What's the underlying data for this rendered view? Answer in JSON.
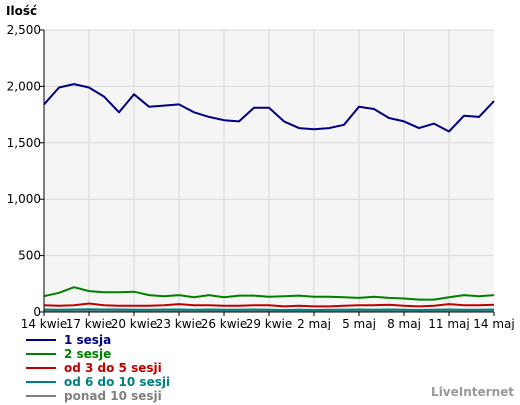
{
  "brand": "LiveInternet",
  "chart_data": {
    "type": "line",
    "ylabel": "Ilość",
    "ylim": [
      0,
      2500
    ],
    "yticks": [
      "0",
      "500",
      "1,000",
      "1,500",
      "2,000",
      "2,500"
    ],
    "ytick_values": [
      0,
      500,
      1000,
      1500,
      2000,
      2500
    ],
    "xticks": [
      "14 kwie",
      "17 kwie",
      "20 kwie",
      "23 kwie",
      "26 kwie",
      "29 kwie",
      "2 maj",
      "5 maj",
      "8 maj",
      "11 maj",
      "14 maj"
    ],
    "x": [
      "14 kwie",
      "15 kwie",
      "16 kwie",
      "17 kwie",
      "18 kwie",
      "19 kwie",
      "20 kwie",
      "21 kwie",
      "22 kwie",
      "23 kwie",
      "24 kwie",
      "25 kwie",
      "26 kwie",
      "27 kwie",
      "28 kwie",
      "29 kwie",
      "30 kwie",
      "1 maj",
      "2 maj",
      "3 maj",
      "4 maj",
      "5 maj",
      "6 maj",
      "7 maj",
      "8 maj",
      "9 maj",
      "10 maj",
      "11 maj",
      "12 maj",
      "13 maj",
      "14 maj"
    ],
    "grid": true,
    "background": "#f5f5f5",
    "series": [
      {
        "name": "1 sesja",
        "color": "#000080",
        "values": [
          1840,
          1990,
          2020,
          1990,
          1910,
          1770,
          1930,
          1820,
          1830,
          1840,
          1770,
          1730,
          1700,
          1690,
          1810,
          1810,
          1690,
          1630,
          1620,
          1630,
          1660,
          1820,
          1800,
          1720,
          1690,
          1630,
          1670,
          1600,
          1740,
          1730,
          1870
        ]
      },
      {
        "name": "2 sesje",
        "color": "#008000",
        "values": [
          140,
          170,
          220,
          185,
          175,
          175,
          180,
          150,
          140,
          150,
          130,
          150,
          130,
          145,
          145,
          135,
          140,
          145,
          135,
          135,
          130,
          125,
          135,
          125,
          120,
          110,
          110,
          130,
          150,
          140,
          150
        ]
      },
      {
        "name": "od 3 do 5 sesji",
        "color": "#c00000",
        "values": [
          60,
          55,
          60,
          75,
          60,
          55,
          55,
          55,
          60,
          70,
          60,
          60,
          55,
          55,
          60,
          60,
          50,
          55,
          50,
          50,
          55,
          60,
          60,
          65,
          55,
          50,
          55,
          70,
          60,
          60,
          65
        ]
      },
      {
        "name": "od 6 do 10 sesji",
        "color": "#008080",
        "values": [
          22,
          20,
          22,
          25,
          22,
          22,
          20,
          20,
          22,
          22,
          20,
          22,
          20,
          20,
          22,
          20,
          18,
          20,
          18,
          20,
          20,
          22,
          20,
          22,
          20,
          18,
          20,
          22,
          20,
          20,
          22
        ]
      },
      {
        "name": "ponad 10 sesji",
        "color": "#808080",
        "values": [
          8,
          8,
          8,
          9,
          8,
          8,
          8,
          8,
          8,
          8,
          8,
          8,
          8,
          8,
          8,
          8,
          7,
          8,
          7,
          8,
          8,
          8,
          8,
          8,
          8,
          7,
          8,
          8,
          8,
          8,
          8
        ]
      }
    ]
  }
}
